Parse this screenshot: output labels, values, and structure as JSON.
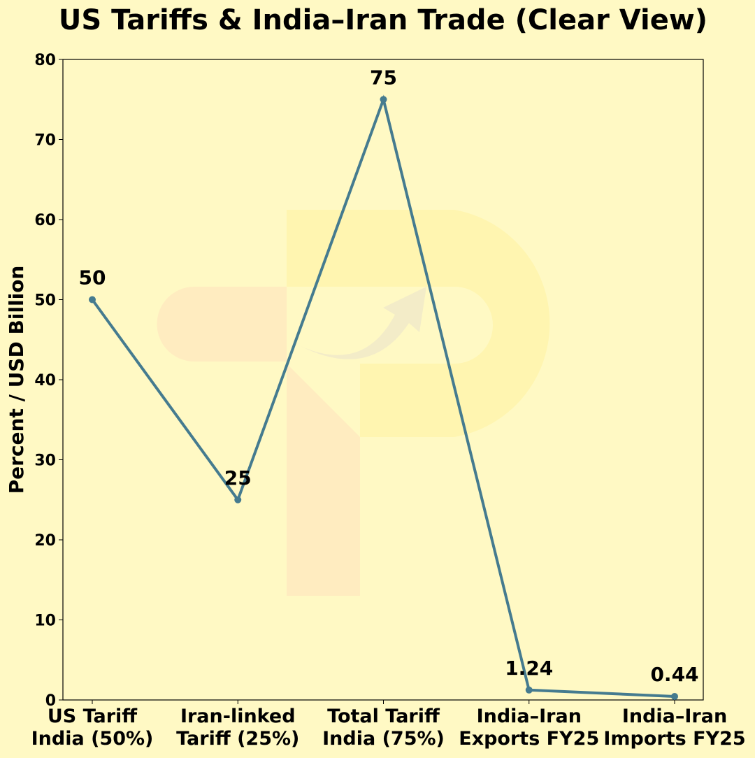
{
  "chart_data": {
    "type": "line",
    "title": "US Tariffs & India–Iran Trade (Clear View)",
    "xlabel": "",
    "ylabel": "Percent / USD Billion",
    "categories": [
      "US Tariff\nIndia (50%)",
      "Iran-linked\nTariff (25%)",
      "Total Tariff\nIndia (75%)",
      "India–Iran\nExports FY25",
      "India–Iran\nImports FY25"
    ],
    "values": [
      50,
      25,
      75,
      1.24,
      0.44
    ],
    "data_labels": [
      "50",
      "25",
      "75",
      "1.24",
      "0.44"
    ],
    "ylim": [
      0,
      80
    ],
    "yticks": [
      0,
      10,
      20,
      30,
      40,
      50,
      60,
      70,
      80
    ],
    "grid": false,
    "colors": {
      "line": "#457b8f",
      "background": "#fff9c4"
    }
  }
}
